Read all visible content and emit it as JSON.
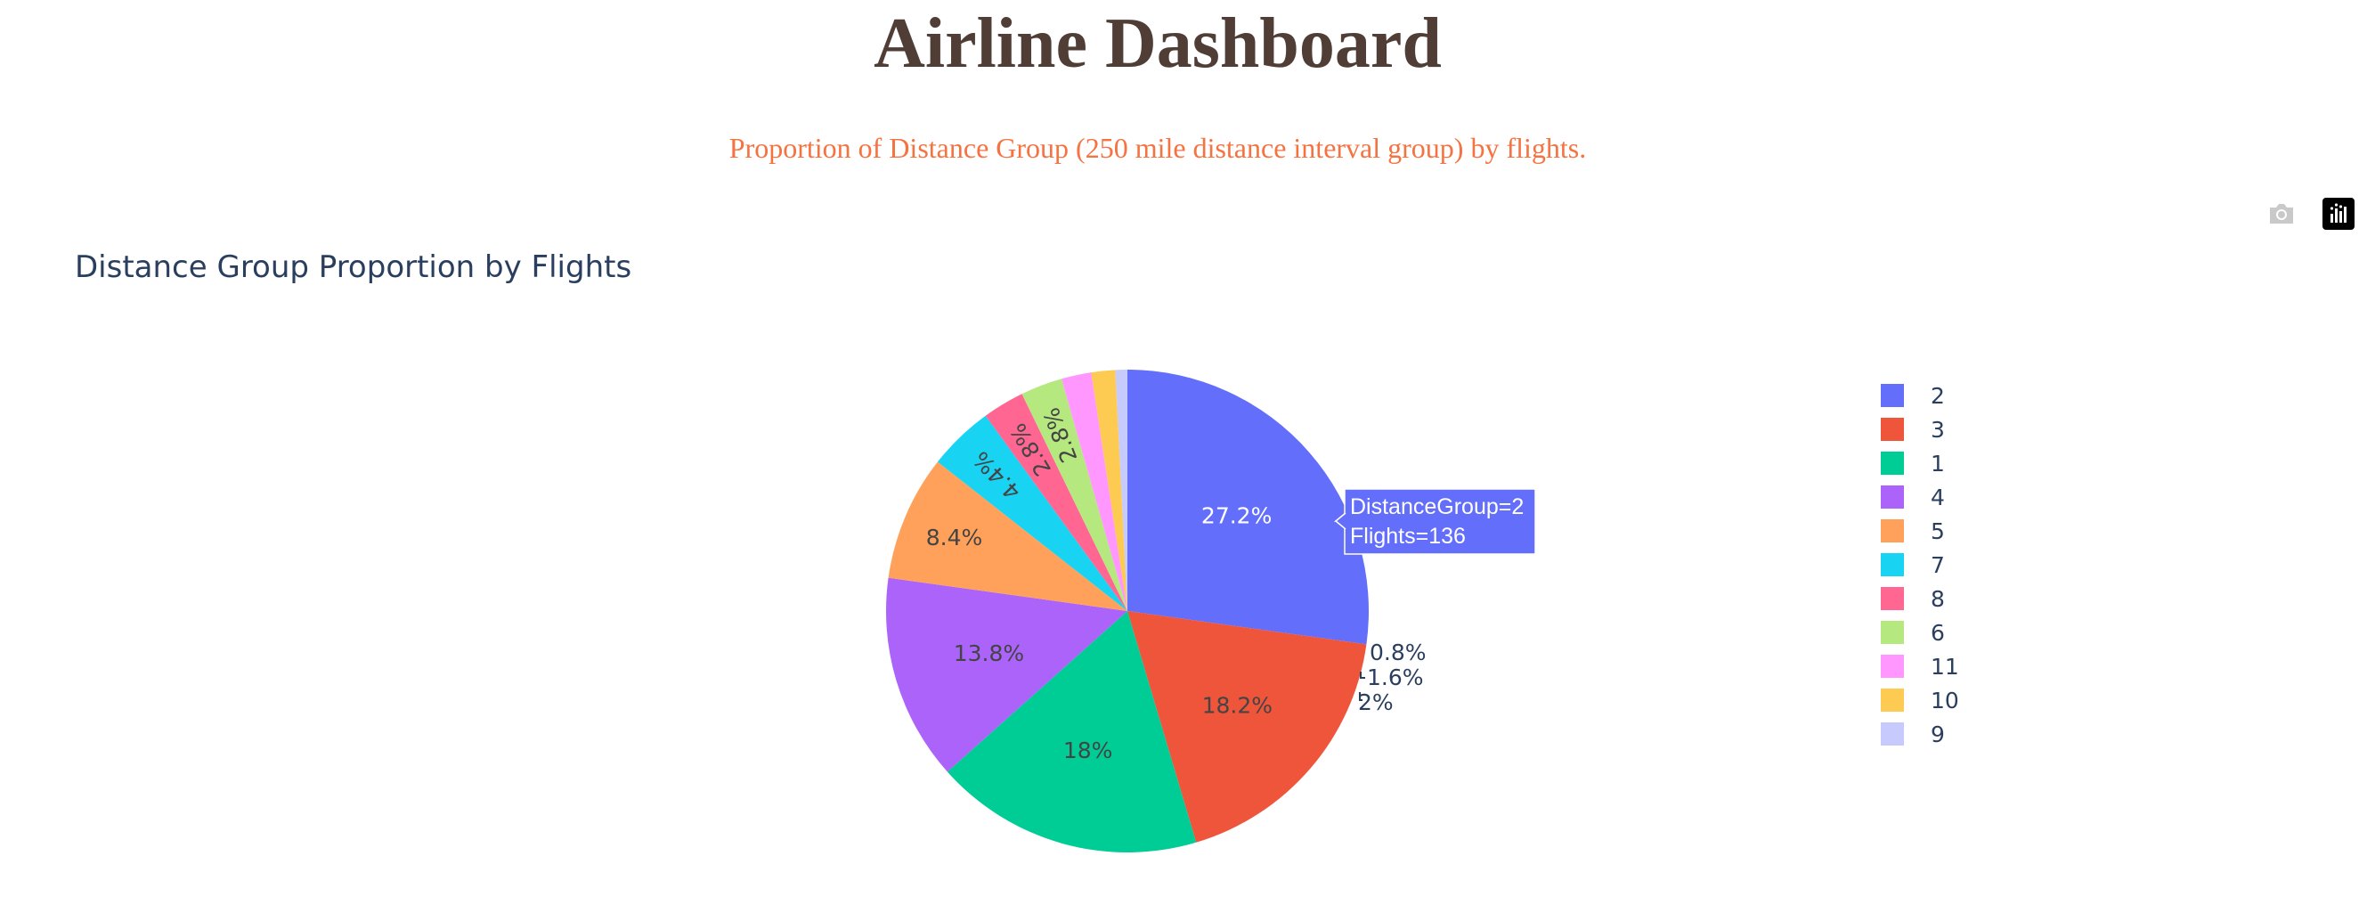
{
  "page": {
    "title": "Airline Dashboard",
    "subtitle": "Proportion of Distance Group (250 mile distance interval group) by flights."
  },
  "modebar": {
    "download_icon": "camera-icon",
    "logo_icon": "plotly-logo-icon"
  },
  "chart_data": {
    "type": "pie",
    "title": "Distance Group Proportion by Flights",
    "labels": [
      "2",
      "3",
      "1",
      "4",
      "5",
      "7",
      "8",
      "6",
      "11",
      "10",
      "9"
    ],
    "values": [
      136,
      91,
      90,
      69,
      42,
      22,
      14,
      14,
      10,
      8,
      4
    ],
    "percent_labels": [
      "27.2%",
      "18.2%",
      "18%",
      "13.8%",
      "8.4%",
      "4.4%",
      "2.8%",
      "2.8%",
      "2%",
      "1.6%",
      "0.8%"
    ],
    "colors": [
      "#636EFA",
      "#EF553B",
      "#00CC96",
      "#AB63FA",
      "#FFA15A",
      "#19D3F3",
      "#FF6692",
      "#B6E880",
      "#FF97FF",
      "#FECB52",
      "#C6CAFD"
    ],
    "legend_position": "right",
    "tooltip": {
      "line1": "DistanceGroup=2",
      "line2": "Flights=136"
    }
  }
}
